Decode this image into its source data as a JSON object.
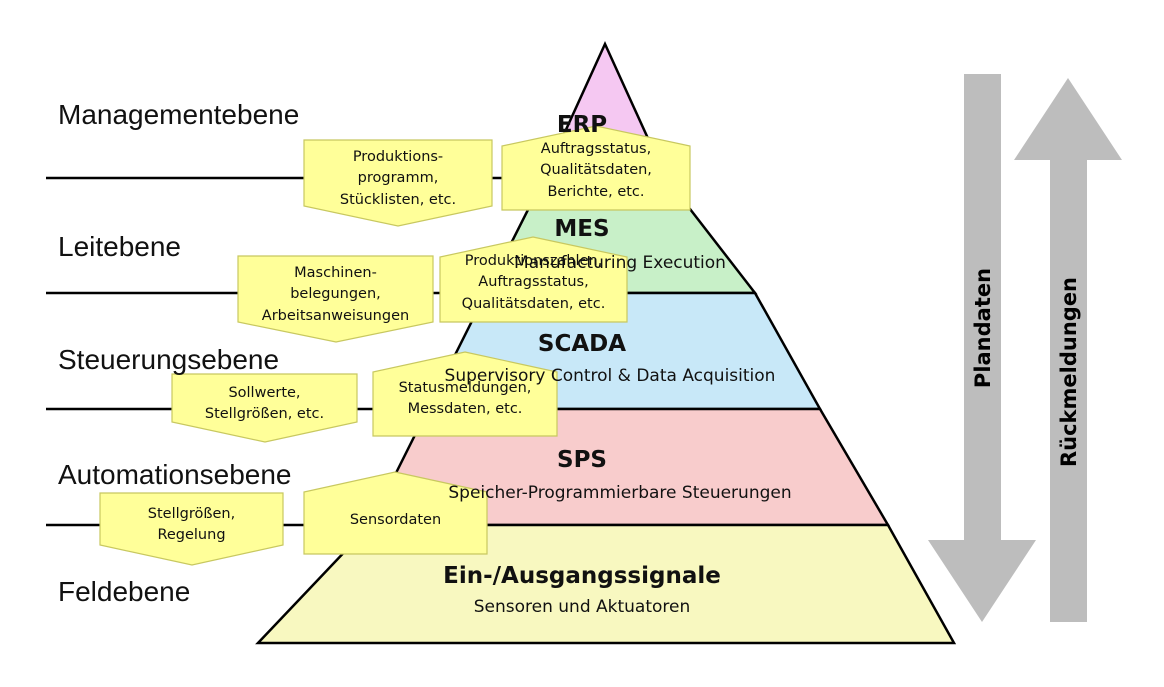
{
  "levels": {
    "management": "Managementebene",
    "leit": "Leitebene",
    "steuerung": "Steuerungsebene",
    "automation": "Automationsebene",
    "feld": "Feldebene"
  },
  "pyramid": {
    "erp": {
      "title": "ERP",
      "fill": "#f5c8f2"
    },
    "mes": {
      "title": "MES",
      "subtitle": "Manufacturing Execution",
      "fill": "#c8f0c8"
    },
    "scada": {
      "title": "SCADA",
      "subtitle": "Supervisory Control & Data Acquisition",
      "fill": "#c8e8f8"
    },
    "sps": {
      "title": "SPS",
      "subtitle": "Speicher-Programmierbare Steuerungen",
      "fill": "#f8cccc"
    },
    "io": {
      "title": "Ein-/Ausgangssignale",
      "subtitle": "Sensoren und Aktuatoren",
      "fill": "#f8f8c0"
    }
  },
  "notes": {
    "down1": "Produktions-\nprogramm,\nStücklisten, etc.",
    "up1": "Auftragsstatus,\nQualitätsdaten,\nBerichte, etc.",
    "down2": "Maschinen-\nbelegungen,\nArbeitsanweisungen",
    "up2": "Produktionszahlen,\nAuftragsstatus,\nQualitätsdaten, etc.",
    "down3": "Sollwerte,\nStellgrößen, etc.",
    "up3": "Statusmeldungen,\nMessdaten, etc.",
    "down4": "Stellgrößen,\nRegelung",
    "up4": "Sensordaten"
  },
  "arrows": {
    "down_label": "Plandaten",
    "up_label": "Rückmeldungen",
    "color": "#bdbdbd"
  },
  "colors": {
    "note_fill": "#ffff99",
    "note_stroke": "#c8c860"
  }
}
